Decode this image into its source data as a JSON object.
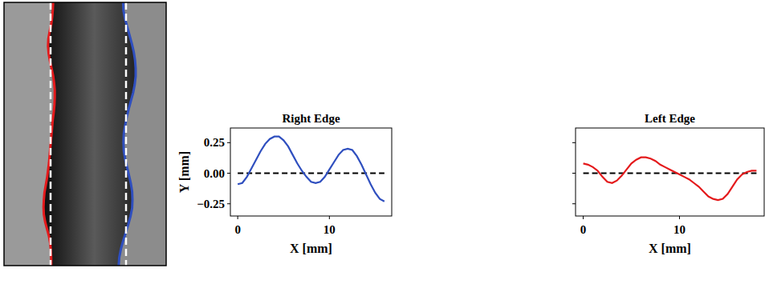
{
  "chart_data": [
    {
      "type": "line",
      "title": "Right Edge",
      "xlabel": "X [mm]",
      "ylabel": "Y [mm]",
      "xlim": [
        -0.8,
        16.8
      ],
      "ylim": [
        -0.35,
        0.37
      ],
      "xticks": [
        0,
        10
      ],
      "yticks": [
        {
          "value": -0.25,
          "label": "−0.25"
        },
        {
          "value": 0,
          "label": "0.00"
        },
        {
          "value": 0.25,
          "label": "0.25"
        }
      ],
      "tick_labels": true,
      "x": [
        0,
        0.5,
        1,
        1.5,
        2,
        2.5,
        3,
        3.5,
        4,
        4.5,
        5,
        5.5,
        6,
        6.5,
        7,
        7.5,
        8,
        8.5,
        9,
        9.5,
        10,
        10.5,
        11,
        11.5,
        12,
        12.5,
        13,
        13.5,
        14,
        14.5,
        15,
        15.5,
        16
      ],
      "series": [
        {
          "color": "#2f4fbf",
          "line_style": "solid",
          "values": [
            -0.09,
            -0.08,
            -0.03,
            0.04,
            0.11,
            0.18,
            0.24,
            0.28,
            0.3,
            0.3,
            0.27,
            0.22,
            0.15,
            0.08,
            0.02,
            -0.03,
            -0.07,
            -0.08,
            -0.07,
            -0.03,
            0.03,
            0.09,
            0.15,
            0.19,
            0.2,
            0.19,
            0.14,
            0.07,
            -0.01,
            -0.09,
            -0.16,
            -0.21,
            -0.23
          ]
        },
        {
          "color": "#000000",
          "line_style": "dashed",
          "values": [
            0,
            0,
            0,
            0,
            0,
            0,
            0,
            0,
            0,
            0,
            0,
            0,
            0,
            0,
            0,
            0,
            0,
            0,
            0,
            0,
            0,
            0,
            0,
            0,
            0,
            0,
            0,
            0,
            0,
            0,
            0,
            0,
            0
          ]
        }
      ]
    },
    {
      "type": "line",
      "title": "Left Edge",
      "xlabel": "X [mm]",
      "xlim": [
        -0.8,
        18.8
      ],
      "ylim": [
        -0.35,
        0.37
      ],
      "xticks": [
        0,
        10
      ],
      "yticks": [
        -0.25,
        0,
        0.25
      ],
      "tick_labels": "x",
      "x": [
        0,
        0.5,
        1,
        1.5,
        2,
        2.5,
        3,
        3.5,
        4,
        4.5,
        5,
        5.5,
        6,
        6.5,
        7,
        7.5,
        8,
        8.5,
        9,
        9.5,
        10,
        10.5,
        11,
        11.5,
        12,
        12.5,
        13,
        13.5,
        14,
        14.5,
        15,
        15.5,
        16,
        16.5,
        17,
        17.5,
        18
      ],
      "series": [
        {
          "color": "#e41a1c",
          "line_style": "solid",
          "values": [
            0.08,
            0.07,
            0.05,
            0.02,
            -0.03,
            -0.07,
            -0.08,
            -0.06,
            -0.02,
            0.03,
            0.08,
            0.11,
            0.13,
            0.13,
            0.12,
            0.1,
            0.07,
            0.05,
            0.03,
            0.01,
            -0.01,
            -0.03,
            -0.05,
            -0.08,
            -0.11,
            -0.15,
            -0.19,
            -0.21,
            -0.22,
            -0.21,
            -0.17,
            -0.11,
            -0.05,
            -0.01,
            0.01,
            0.02,
            0.02
          ]
        },
        {
          "color": "#000000",
          "line_style": "dashed",
          "values": [
            0,
            0,
            0,
            0,
            0,
            0,
            0,
            0,
            0,
            0,
            0,
            0,
            0,
            0,
            0,
            0,
            0,
            0,
            0,
            0,
            0,
            0,
            0,
            0,
            0,
            0,
            0,
            0,
            0,
            0,
            0,
            0,
            0,
            0,
            0,
            0,
            0
          ]
        }
      ]
    }
  ]
}
